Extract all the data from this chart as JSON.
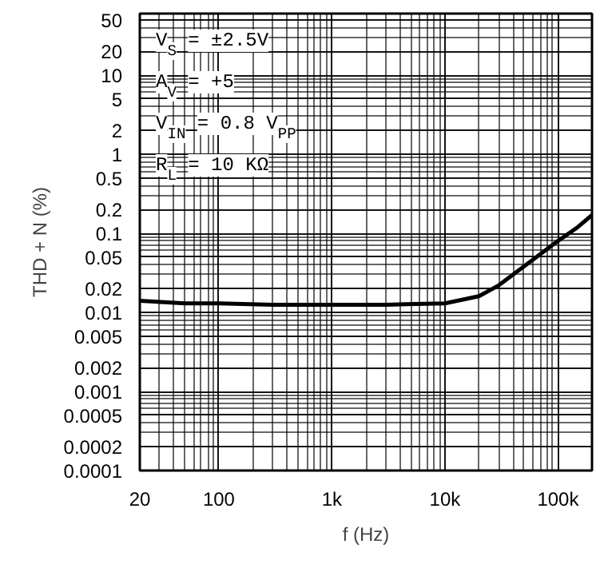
{
  "chart_data": {
    "type": "line",
    "xlabel": "f (Hz)",
    "ylabel": "THD + N (%)",
    "log": "xy",
    "grid": true,
    "x": [
      20,
      50,
      100,
      300,
      1000,
      3000,
      10000,
      20000,
      30000,
      50000,
      100000,
      150000,
      200000
    ],
    "series": [
      {
        "color": "#000000",
        "values": [
          0.014,
          0.013,
          0.013,
          0.0125,
          0.0125,
          0.0125,
          0.013,
          0.016,
          0.022,
          0.038,
          0.08,
          0.12,
          0.17
        ]
      }
    ],
    "xlim": [
      20,
      200000
    ],
    "ylim": [
      0.0001,
      60
    ],
    "xticks": [
      20,
      100,
      {
        "value": 1000,
        "label": "1k"
      },
      {
        "value": 10000,
        "label": "10k"
      },
      {
        "value": 100000,
        "label": "100k"
      }
    ],
    "yticks": [
      0.0001,
      0.0002,
      0.0005,
      0.001,
      0.002,
      0.005,
      0.01,
      0.02,
      0.05,
      0.1,
      0.2,
      0.5,
      1,
      2,
      5,
      10,
      20,
      50
    ],
    "annotations": [
      "V$_{S}$ = ±2.5V",
      "A$_{V}$ = +5",
      "V$_{IN}$ = 0.8 V$_{PP}$",
      "R$_{L}$ = 10 KΩ"
    ]
  }
}
